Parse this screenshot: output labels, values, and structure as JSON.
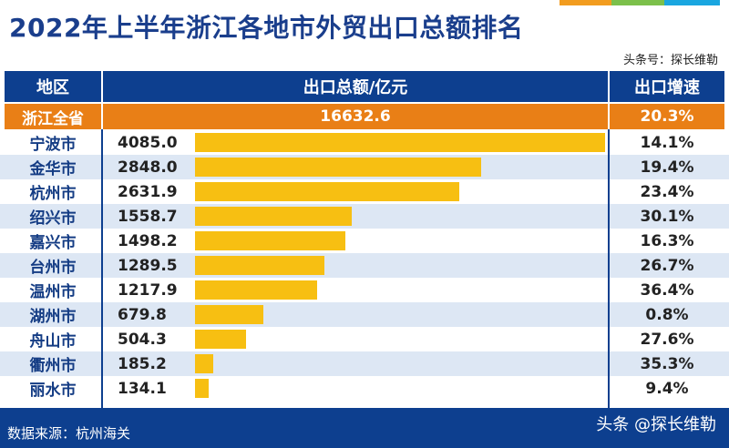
{
  "title": "2022年上半年浙江各地市外贸出口总额排名",
  "source_label": "头条号：探长维勒",
  "header": {
    "region": "地区",
    "export": "出口总额/亿元",
    "growth": "出口增速"
  },
  "total": {
    "region": "浙江全省",
    "export": "16632.6",
    "growth": "20.3%"
  },
  "colors": {
    "header": "#0d3f8f",
    "total": "#e97f16",
    "bar": "#f7bf12",
    "stripe": "#dde7f4",
    "accent": [
      "#f29c1f",
      "#7cc04b",
      "#1aa6e0"
    ]
  },
  "chart_data": {
    "type": "bar",
    "orientation": "horizontal",
    "title": "2022年上半年浙江各地市外贸出口总额排名",
    "xlabel": "出口总额/亿元",
    "categories": [
      "宁波市",
      "金华市",
      "杭州市",
      "绍兴市",
      "嘉兴市",
      "台州市",
      "温州市",
      "湖州市",
      "舟山市",
      "衢州市",
      "丽水市"
    ],
    "values": [
      4085.0,
      2848.0,
      2631.9,
      1558.7,
      1498.2,
      1289.5,
      1217.9,
      679.8,
      504.3,
      185.2,
      134.1
    ],
    "value_labels": [
      "4085.0",
      "2848.0",
      "2631.9",
      "1558.7",
      "1498.2",
      "1289.5",
      "1217.9",
      "679.8",
      "504.3",
      "185.2",
      "134.1"
    ],
    "growth": [
      "14.1%",
      "19.4%",
      "23.4%",
      "30.1%",
      "16.3%",
      "26.7%",
      "36.4%",
      "0.8%",
      "27.6%",
      "35.3%",
      "9.4%"
    ],
    "xlim": [
      0,
      4085.0
    ],
    "grid": false
  },
  "footer": {
    "source": "数据来源：杭州海关",
    "logo": "头条 @探长维勒"
  }
}
